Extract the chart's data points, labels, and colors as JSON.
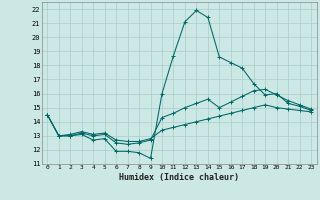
{
  "xlabel": "Humidex (Indice chaleur)",
  "bg_color": "#cce8e4",
  "grid_color": "#aacccc",
  "line_color": "#006666",
  "x_values": [
    0,
    1,
    2,
    3,
    4,
    5,
    6,
    7,
    8,
    9,
    10,
    11,
    12,
    13,
    14,
    15,
    16,
    17,
    18,
    19,
    20,
    21,
    22,
    23
  ],
  "line1": [
    14.5,
    13.0,
    13.0,
    13.1,
    12.7,
    12.8,
    11.9,
    11.9,
    11.8,
    11.4,
    16.0,
    18.7,
    21.1,
    21.9,
    21.4,
    18.6,
    18.2,
    17.8,
    16.7,
    15.9,
    16.0,
    15.3,
    15.1,
    14.8
  ],
  "line2": [
    14.5,
    13.0,
    13.0,
    13.2,
    13.0,
    13.1,
    12.5,
    12.4,
    12.5,
    12.7,
    14.3,
    14.6,
    15.0,
    15.3,
    15.6,
    15.0,
    15.4,
    15.8,
    16.2,
    16.3,
    15.9,
    15.5,
    15.2,
    14.9
  ],
  "line3": [
    14.5,
    13.0,
    13.1,
    13.3,
    13.1,
    13.2,
    12.7,
    12.6,
    12.6,
    12.8,
    13.4,
    13.6,
    13.8,
    14.0,
    14.2,
    14.4,
    14.6,
    14.8,
    15.0,
    15.2,
    15.0,
    14.9,
    14.8,
    14.7
  ],
  "ylim": [
    11,
    22.5
  ],
  "xlim": [
    -0.5,
    23.5
  ],
  "yticks": [
    11,
    12,
    13,
    14,
    15,
    16,
    17,
    18,
    19,
    20,
    21,
    22
  ],
  "xticks": [
    0,
    1,
    2,
    3,
    4,
    5,
    6,
    7,
    8,
    9,
    10,
    11,
    12,
    13,
    14,
    15,
    16,
    17,
    18,
    19,
    20,
    21,
    22,
    23
  ]
}
